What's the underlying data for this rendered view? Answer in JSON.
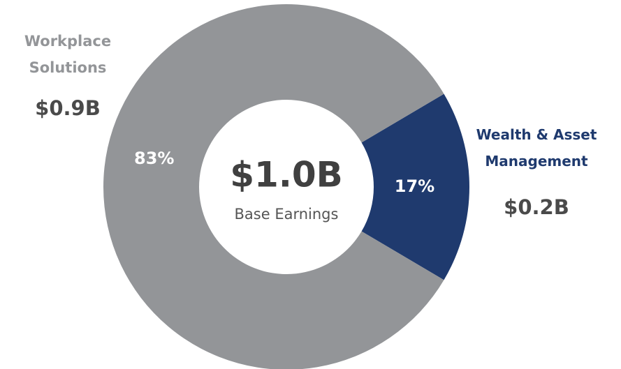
{
  "chart_data": {
    "type": "pie",
    "donut": true,
    "categories": [
      "Workplace Solutions",
      "Wealth & Asset Management"
    ],
    "values": [
      83,
      17
    ],
    "value_labels": [
      "83%",
      "17%"
    ],
    "amounts": [
      "$0.9B",
      "$0.2B"
    ],
    "colors": [
      "#939598",
      "#1f3a6e"
    ],
    "center_value": "$1.0B",
    "center_label": "Base Earnings"
  }
}
